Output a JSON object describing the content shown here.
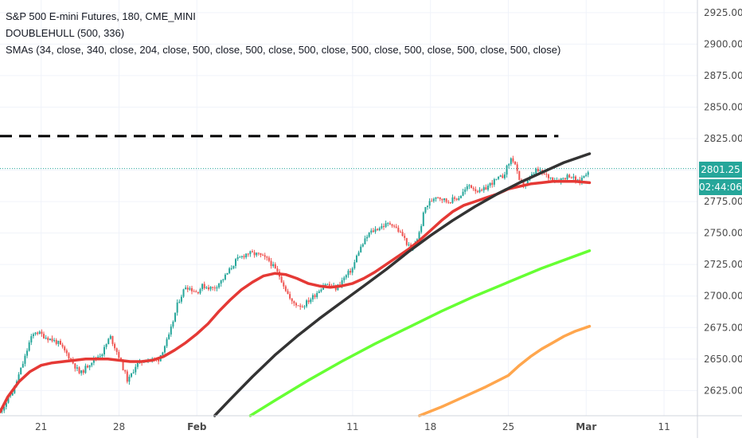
{
  "header": {
    "symbol_line": "S&P 500 E-mini Futures, 180, CME_MINI",
    "indicator_1": "DOUBLEHULL (500, 336)",
    "indicator_2": "SMAs (34, close, 340, close, 204, close, 500, close, 500, close, 500, close, 500, close, 500, close, 500, close, 500, close)"
  },
  "price_scale": {
    "last_price": "2801.25",
    "countdown": "02:44:06"
  },
  "colors": {
    "up": "#26a69a",
    "down": "#ef5350",
    "sma_fast": "#e53935",
    "sma_slow": "#333333",
    "sma_green": "#66ff33",
    "sma_orange": "#ffa64d",
    "resistance": "#000000",
    "grid": "#f0f3fa",
    "axis_text": "#4a4a4a"
  },
  "chart_data": {
    "type": "line",
    "title": "S&P 500 E-mini Futures, 180, CME_MINI",
    "xlabel": "",
    "ylabel": "",
    "ylim": [
      2605,
      2935
    ],
    "x_ticks": [
      "21",
      "28",
      "Feb",
      "11",
      "18",
      "25",
      "Mar",
      "11"
    ],
    "x_tick_positions": [
      21,
      28,
      35,
      49,
      56,
      63,
      70,
      77
    ],
    "y_ticks": [
      2625,
      2650,
      2675,
      2700,
      2725,
      2750,
      2775,
      2800,
      2825,
      2850,
      2875,
      2900,
      2925
    ],
    "x_range": [
      17.3,
      80
    ],
    "last_price": 2801.25,
    "last_date": 70.3,
    "price_path": [
      [
        17.3,
        2608
      ],
      [
        18.5,
        2625
      ],
      [
        19.5,
        2650
      ],
      [
        20,
        2665
      ],
      [
        20.5,
        2672
      ],
      [
        21.3,
        2668
      ],
      [
        22.5,
        2663
      ],
      [
        23.5,
        2652
      ],
      [
        24.5,
        2638
      ],
      [
        25,
        2643
      ],
      [
        25.5,
        2648
      ],
      [
        26.5,
        2655
      ],
      [
        27.2,
        2668
      ],
      [
        28,
        2652
      ],
      [
        28.8,
        2632
      ],
      [
        29.5,
        2645
      ],
      [
        30.5,
        2650
      ],
      [
        31.5,
        2649
      ],
      [
        32.5,
        2668
      ],
      [
        33.3,
        2695
      ],
      [
        34,
        2708
      ],
      [
        35,
        2703
      ],
      [
        35.5,
        2708
      ],
      [
        36.5,
        2706
      ],
      [
        37.5,
        2715
      ],
      [
        38.5,
        2728
      ],
      [
        39.5,
        2734
      ],
      [
        40.5,
        2733
      ],
      [
        41.5,
        2728
      ],
      [
        42.5,
        2715
      ],
      [
        43.5,
        2695
      ],
      [
        44.5,
        2692
      ],
      [
        45.5,
        2700
      ],
      [
        46.5,
        2710
      ],
      [
        47.5,
        2706
      ],
      [
        48.3,
        2715
      ],
      [
        49,
        2722
      ],
      [
        49.5,
        2735
      ],
      [
        50.5,
        2750
      ],
      [
        51.5,
        2755
      ],
      [
        52.5,
        2758
      ],
      [
        53.5,
        2748
      ],
      [
        54.3,
        2735
      ],
      [
        55,
        2750
      ],
      [
        55.5,
        2770
      ],
      [
        56.5,
        2780
      ],
      [
        57.5,
        2775
      ],
      [
        58.5,
        2778
      ],
      [
        59.5,
        2788
      ],
      [
        60.5,
        2782
      ],
      [
        61.5,
        2790
      ],
      [
        62.5,
        2795
      ],
      [
        63.3,
        2810
      ],
      [
        63.6,
        2805
      ],
      [
        64,
        2790
      ],
      [
        64.5,
        2788
      ],
      [
        65.5,
        2800
      ],
      [
        66.5,
        2795
      ],
      [
        67.5,
        2792
      ],
      [
        68.5,
        2796
      ],
      [
        69.3,
        2790
      ],
      [
        70,
        2798
      ],
      [
        70.3,
        2801.25
      ]
    ],
    "series": [
      {
        "name": "SMA 34",
        "color": "#e53935",
        "x": [
          17.3,
          18,
          19,
          20,
          21,
          22,
          23,
          24,
          25,
          26,
          27,
          28,
          29,
          30,
          31,
          32,
          33,
          34,
          35,
          36,
          37,
          38,
          39,
          40,
          41,
          42,
          43,
          44,
          45,
          46,
          47,
          48,
          49,
          50,
          51,
          52,
          53,
          54,
          55,
          56,
          57,
          58,
          59,
          60,
          61,
          62,
          63,
          64,
          65,
          66,
          67,
          68,
          69,
          70.3
        ],
        "values": [
          2608,
          2620,
          2632,
          2640,
          2645,
          2647,
          2648,
          2649,
          2650,
          2650,
          2650,
          2649,
          2648,
          2648,
          2649,
          2652,
          2657,
          2663,
          2670,
          2678,
          2688,
          2697,
          2705,
          2711,
          2716,
          2718,
          2717,
          2714,
          2710,
          2708,
          2707,
          2708,
          2710,
          2714,
          2719,
          2725,
          2731,
          2737,
          2744,
          2752,
          2760,
          2767,
          2772,
          2775,
          2778,
          2781,
          2785,
          2787,
          2789,
          2790,
          2791,
          2791,
          2791,
          2790
        ]
      },
      {
        "name": "SMA 340",
        "color": "#333333",
        "x": [
          36.6,
          38,
          40,
          42,
          44,
          46,
          48,
          50,
          52,
          54,
          56,
          58,
          60,
          62,
          64,
          66,
          68,
          70.3
        ],
        "values": [
          2605,
          2618,
          2636,
          2653,
          2668,
          2682,
          2695,
          2708,
          2721,
          2735,
          2748,
          2760,
          2771,
          2781,
          2790,
          2798,
          2806,
          2813
        ]
      },
      {
        "name": "SMA 204",
        "color": "#66ff33",
        "x": [
          39.8,
          42,
          45,
          48,
          51,
          54,
          57,
          60,
          63,
          66,
          70.3
        ],
        "values": [
          2605,
          2617,
          2633,
          2648,
          2662,
          2675,
          2688,
          2700,
          2711,
          2722,
          2736
        ]
      },
      {
        "name": "SMA 500",
        "color": "#ffa64d",
        "x": [
          55,
          57,
          59,
          61,
          63,
          64,
          65,
          66,
          67,
          68,
          69,
          70.3
        ],
        "values": [
          2605,
          2612,
          2620,
          2628,
          2637,
          2645,
          2652,
          2658,
          2663,
          2668,
          2672,
          2676
        ]
      }
    ],
    "resistance": {
      "level": 2827,
      "x_start": 17.3,
      "x_end": 67.5
    },
    "grid": true,
    "legend": "top-left"
  }
}
